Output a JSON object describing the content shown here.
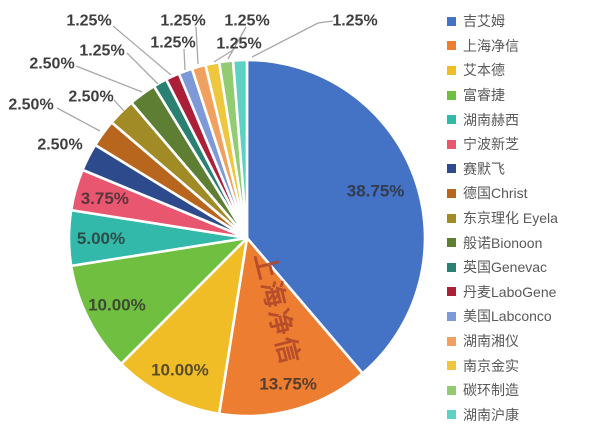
{
  "chart_data": {
    "type": "pie",
    "title": "",
    "legend_position": "right",
    "start_angle_deg": 0,
    "direction": "clockwise",
    "unit": "percent",
    "label_format": "0.00%",
    "slices": [
      {
        "label": "吉艾姆",
        "value": 38.75,
        "display": "38.75%",
        "color": "#4472C4"
      },
      {
        "label": "上海净信",
        "value": 13.75,
        "display": "13.75%",
        "color": "#ED7D31"
      },
      {
        "label": "艾本德",
        "value": 10.0,
        "display": "10.00%",
        "color": "#F0BD27"
      },
      {
        "label": "富睿捷",
        "value": 10.0,
        "display": "10.00%",
        "color": "#70BF41"
      },
      {
        "label": "湖南赫西",
        "value": 5.0,
        "display": "5.00%",
        "color": "#32B9A9"
      },
      {
        "label": "宁波新芝",
        "value": 3.75,
        "display": "3.75%",
        "color": "#E9566F"
      },
      {
        "label": "赛默飞",
        "value": 2.5,
        "display": "2.50%",
        "color": "#2C4A8C"
      },
      {
        "label": "德国Christ",
        "value": 2.5,
        "display": "2.50%",
        "color": "#B8651D"
      },
      {
        "label": "东京理化 Eyela",
        "value": 2.5,
        "display": "2.50%",
        "color": "#A18B26"
      },
      {
        "label": "般诺Bionoon",
        "value": 2.5,
        "display": "2.50%",
        "color": "#5E7E33"
      },
      {
        "label": "英国Genevac",
        "value": 1.25,
        "display": "1.25%",
        "color": "#2A8172"
      },
      {
        "label": "丹麦LaboGene",
        "value": 1.25,
        "display": "1.25%",
        "color": "#AB2038"
      },
      {
        "label": "美国Labconco",
        "value": 1.25,
        "display": "1.25%",
        "color": "#7D99D8"
      },
      {
        "label": "湖南湘仪",
        "value": 1.25,
        "display": "1.25%",
        "color": "#F0A160"
      },
      {
        "label": "南京金实",
        "value": 1.25,
        "display": "1.25%",
        "color": "#EFC73E"
      },
      {
        "label": "碳环制造",
        "value": 1.25,
        "display": "1.25%",
        "color": "#93CB72"
      },
      {
        "label": "湖南沪康",
        "value": 1.25,
        "display": "1.25%",
        "color": "#5ED2C2"
      }
    ]
  },
  "watermark": {
    "text": "上海净信",
    "color": "#B0482B"
  },
  "colors": {
    "background": "#FFFFFF",
    "leader_line": "#A8A8A8",
    "outside_label": "#3F3F3F",
    "legend_text": "#595959"
  }
}
